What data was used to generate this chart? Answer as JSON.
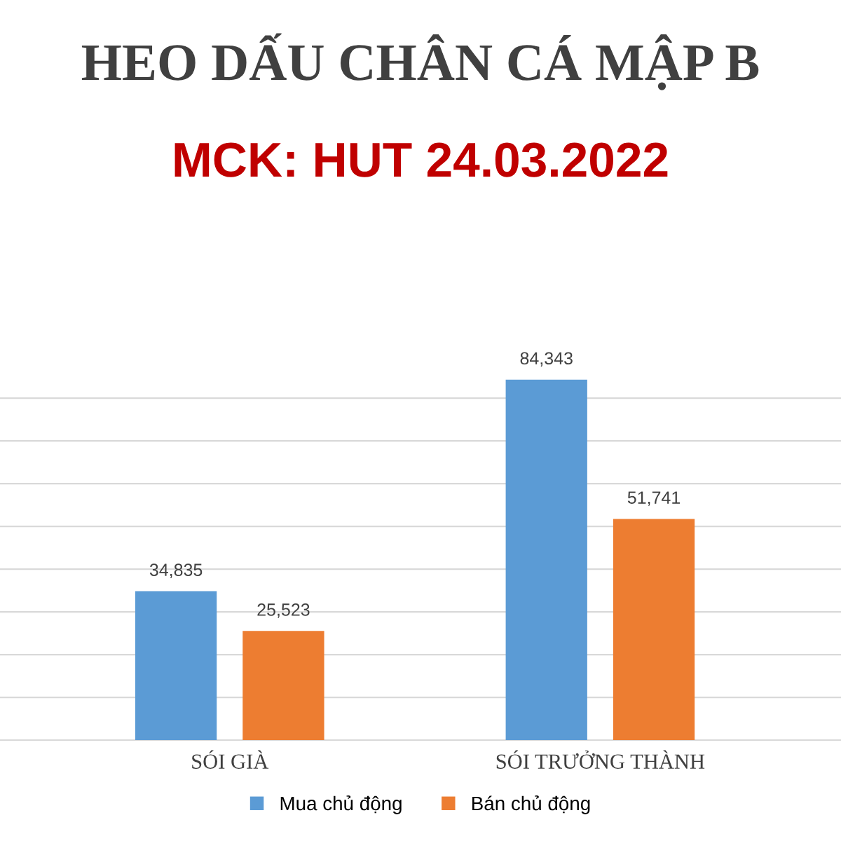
{
  "chart_data": {
    "type": "bar",
    "title": "HEO DẤU CHÂN CÁ MẬP B",
    "subtitle": "MCK: HUT 24.03.2022",
    "categories": [
      "SÓI GIÀ",
      "SÓI TRƯỞNG THÀNH"
    ],
    "series": [
      {
        "name": "Mua chủ động",
        "color": "#5b9bd5",
        "values": [
          34835,
          84343
        ],
        "value_labels": [
          "34,835",
          "84,343"
        ]
      },
      {
        "name": "Bán chủ động",
        "color": "#ed7d31",
        "values": [
          25523,
          51741
        ],
        "value_labels": [
          "25,523",
          "51,741"
        ]
      }
    ],
    "grid": "y",
    "legend": "bottom",
    "tick_labels": "x"
  }
}
